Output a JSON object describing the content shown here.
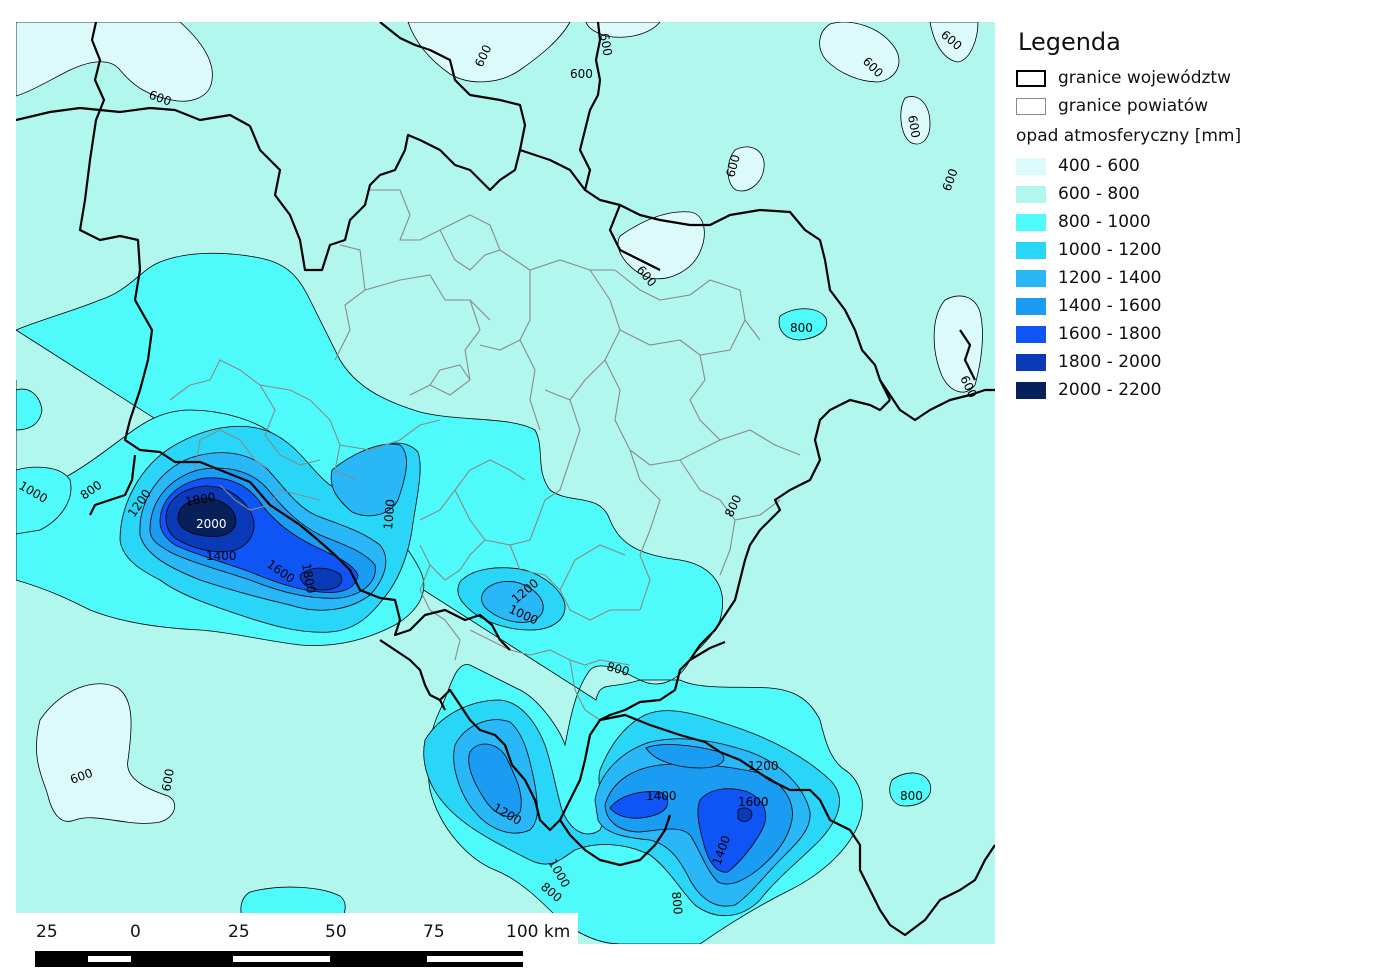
{
  "legend": {
    "title": "Legenda",
    "voivodeship_borders": "granice województw",
    "county_borders": "granice powiatów",
    "precip_heading": "opad atmosferyczny [mm]",
    "classes": [
      {
        "label": "400 - 600",
        "color": "#dcfafa"
      },
      {
        "label": "600 - 800",
        "color": "#b2f7ee"
      },
      {
        "label": "800 - 1000",
        "color": "#4ffafa"
      },
      {
        "label": "1000 - 1200",
        "color": "#2ad6f7"
      },
      {
        "label": "1200 - 1400",
        "color": "#2ab7f7"
      },
      {
        "label": "1400 - 1600",
        "color": "#1b9cf3"
      },
      {
        "label": "1600 - 1800",
        "color": "#0f55f5"
      },
      {
        "label": "1800 - 2000",
        "color": "#0a3ab8"
      },
      {
        "label": "2000 - 2200",
        "color": "#07205a"
      }
    ]
  },
  "contour_labels": [
    "600",
    "600",
    "600",
    "600",
    "600",
    "600",
    "600",
    "600",
    "600",
    "600",
    "600",
    "800",
    "800",
    "800",
    "800",
    "800",
    "800",
    "1000",
    "1000",
    "1000",
    "1000",
    "1200",
    "1200",
    "1200",
    "1200",
    "1400",
    "1400",
    "1400",
    "1600",
    "1600",
    "1800",
    "1800",
    "2000",
    "600",
    "600",
    "800"
  ],
  "scale_bar": {
    "labels": [
      "25",
      "0",
      "25",
      "50",
      "75",
      "100 km"
    ]
  }
}
